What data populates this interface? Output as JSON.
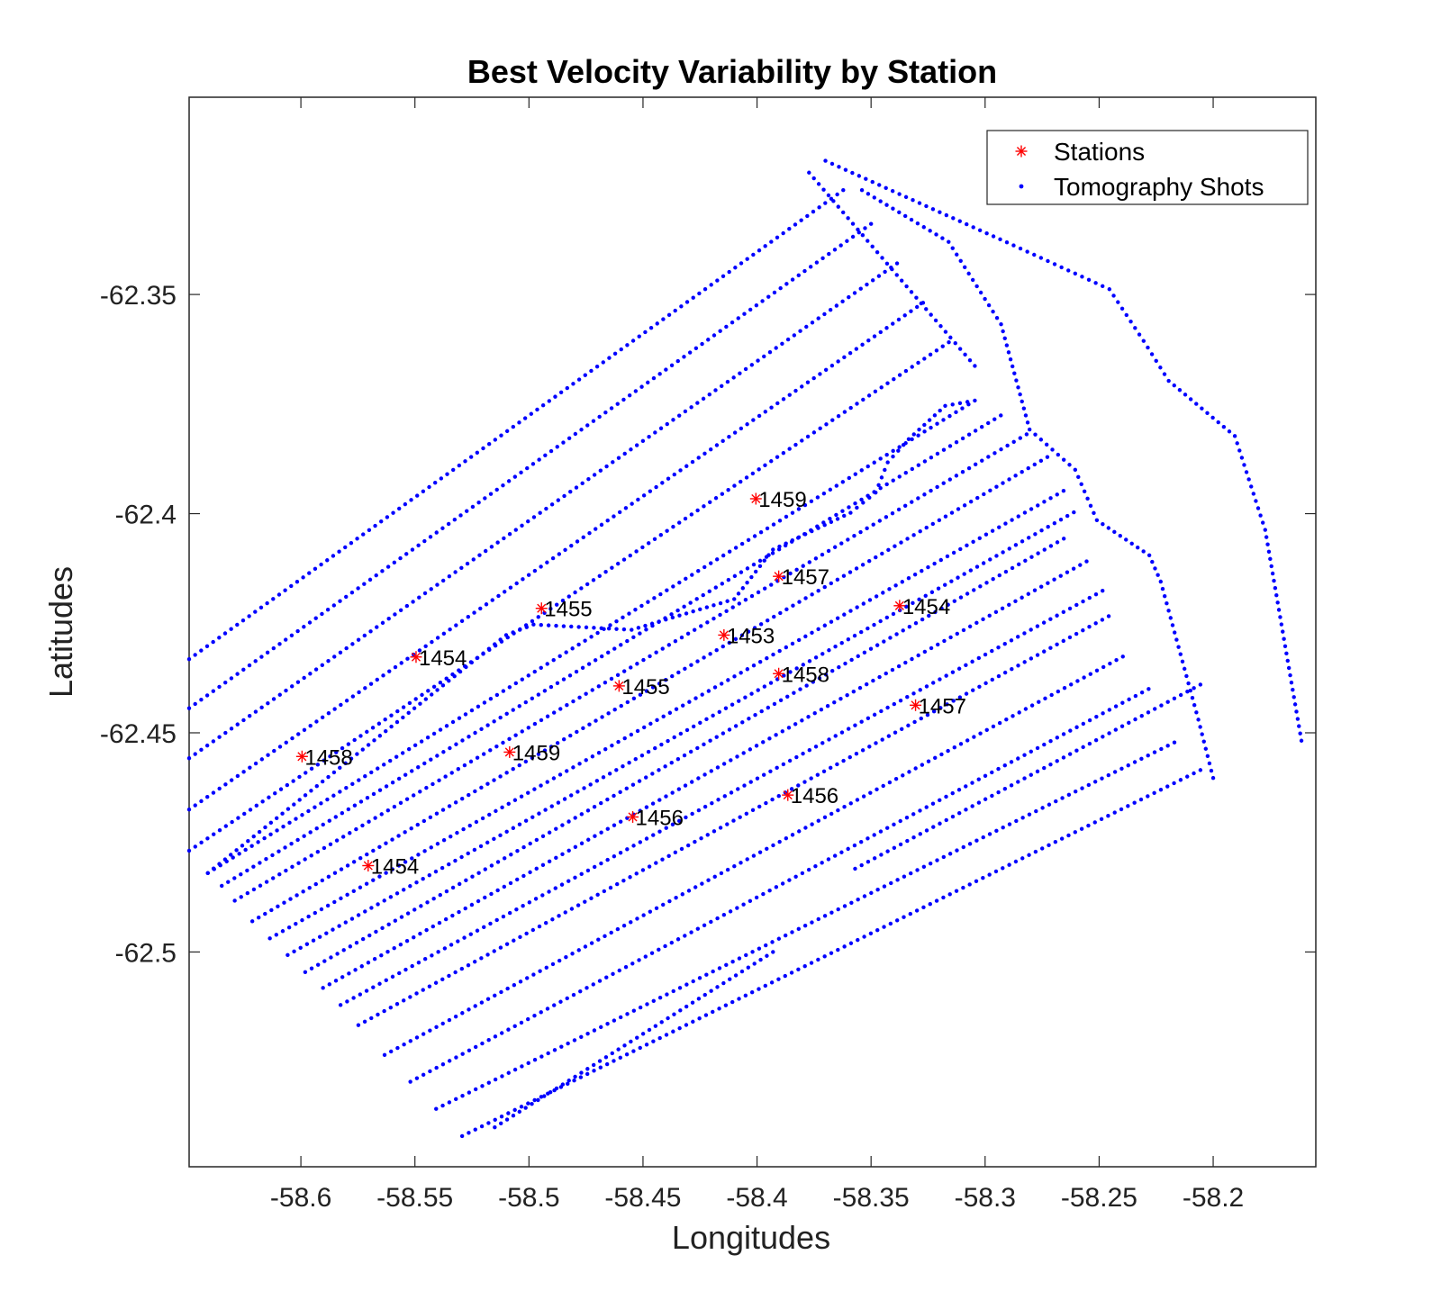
{
  "chart_data": {
    "type": "scatter",
    "title": "Best Velocity Variability by Station",
    "xlabel": "Longitudes",
    "ylabel": "Latitudes",
    "xlim": [
      -58.649,
      -58.155
    ],
    "ylim": [
      -62.549,
      -62.305
    ],
    "xticks": [
      -58.6,
      -58.55,
      -58.5,
      -58.45,
      -58.4,
      -58.35,
      -58.3,
      -58.25,
      -58.2
    ],
    "xtick_labels": [
      "-58.6",
      "-58.55",
      "-58.5",
      "-58.45",
      "-58.4",
      "-58.35",
      "-58.3",
      "-58.25",
      "-58.2"
    ],
    "yticks": [
      -62.35,
      -62.4,
      -62.45,
      -62.5
    ],
    "ytick_labels": [
      "-62.35",
      "-62.4",
      "-62.45",
      "-62.5"
    ],
    "grid": false,
    "legend": {
      "position": "top-right",
      "entries": [
        {
          "label": "Stations",
          "marker": "asterisk",
          "color": "#ff0000"
        },
        {
          "label": "Tomography Shots",
          "marker": "dot",
          "color": "#0000ff"
        }
      ]
    },
    "series": [
      {
        "name": "Stations",
        "marker": "asterisk",
        "color": "#ff0000",
        "points": [
          {
            "x": -58.4005,
            "y": -62.3966,
            "label": "1459"
          },
          {
            "x": -58.3905,
            "y": -62.4143,
            "label": "1457"
          },
          {
            "x": -58.4945,
            "y": -62.4216,
            "label": "1455"
          },
          {
            "x": -58.3375,
            "y": -62.421,
            "label": "1454"
          },
          {
            "x": -58.4145,
            "y": -62.4277,
            "label": "1453"
          },
          {
            "x": -58.5495,
            "y": -62.4327,
            "label": "1454"
          },
          {
            "x": -58.3905,
            "y": -62.4365,
            "label": "1458"
          },
          {
            "x": -58.4605,
            "y": -62.4393,
            "label": "1455"
          },
          {
            "x": -58.3305,
            "y": -62.4437,
            "label": "1457"
          },
          {
            "x": -58.5995,
            "y": -62.4554,
            "label": "1458"
          },
          {
            "x": -58.5085,
            "y": -62.4544,
            "label": "1459"
          },
          {
            "x": -58.3865,
            "y": -62.4642,
            "label": "1456"
          },
          {
            "x": -58.4545,
            "y": -62.4692,
            "label": "1456"
          },
          {
            "x": -58.5705,
            "y": -62.4803,
            "label": "1454"
          }
        ]
      },
      {
        "name": "Tomography Shots",
        "marker": "dot",
        "color": "#0000ff",
        "lines": [
          [
            [
              -58.649,
              -62.4332
            ],
            [
              -58.3622,
              -62.3262
            ]
          ],
          [
            [
              -58.649,
              -62.4444
            ],
            [
              -58.35,
              -62.3339
            ]
          ],
          [
            [
              -58.649,
              -62.4558
            ],
            [
              -58.3386,
              -62.3429
            ]
          ],
          [
            [
              -58.649,
              -62.4675
            ],
            [
              -58.3272,
              -62.3519
            ]
          ],
          [
            [
              -58.649,
              -62.4769
            ],
            [
              -58.3159,
              -62.3609
            ]
          ],
          [
            [
              -58.6408,
              -62.482
            ],
            [
              -58.3045,
              -62.3742
            ],
            [
              -58.3175,
              -62.3754
            ],
            [
              -58.3335,
              -62.383
            ],
            [
              -58.3427,
              -62.3883
            ],
            [
              -58.348,
              -62.3952
            ],
            [
              -58.359,
              -62.3998
            ],
            [
              -58.393,
              -62.4082
            ],
            [
              -58.41,
              -62.4195
            ],
            [
              -58.455,
              -62.4265
            ],
            [
              -58.498,
              -62.4253
            ],
            [
              -58.51,
              -62.4277
            ],
            [
              -58.6408,
              -62.482
            ]
          ],
          [
            [
              -58.6347,
              -62.4849
            ],
            [
              -58.2931,
              -62.3776
            ]
          ],
          [
            [
              -58.629,
              -62.4883
            ],
            [
              -58.2818,
              -62.3819
            ]
          ],
          [
            [
              -58.6213,
              -62.493
            ],
            [
              -58.2727,
              -62.3871
            ]
          ],
          [
            [
              -58.6136,
              -62.4969
            ],
            [
              -58.2656,
              -62.3948
            ]
          ],
          [
            [
              -58.6058,
              -62.5007
            ],
            [
              -58.2611,
              -62.3997
            ]
          ],
          [
            [
              -58.5981,
              -62.5046
            ],
            [
              -58.2655,
              -62.4057
            ]
          ],
          [
            [
              -58.5903,
              -62.5082
            ],
            [
              -58.2555,
              -62.4109
            ]
          ],
          [
            [
              -58.5826,
              -62.5121
            ],
            [
              -58.2485,
              -62.4176
            ]
          ],
          [
            [
              -58.5748,
              -62.5167
            ],
            [
              -58.2458,
              -62.4234
            ]
          ],
          [
            [
              -58.5633,
              -62.5235
            ],
            [
              -58.2396,
              -62.4326
            ]
          ],
          [
            [
              -58.552,
              -62.5296
            ],
            [
              -58.2283,
              -62.44
            ]
          ],
          [
            [
              -58.5407,
              -62.5358
            ],
            [
              -58.217,
              -62.4522
            ]
          ],
          [
            [
              -58.5293,
              -62.542
            ],
            [
              -58.2056,
              -62.4585
            ]
          ],
          [
            [
              -58.515,
              -62.54
            ],
            [
              -58.393,
              -62.5
            ]
          ],
          [
            [
              -58.357,
              -62.481
            ],
            [
              -58.2056,
              -62.439
            ]
          ],
          [
            [
              -58.3772,
              -62.3222
            ],
            [
              -58.3045,
              -62.3663
            ]
          ],
          [
            [
              -58.37,
              -62.3195
            ],
            [
              -58.2875,
              -62.3388
            ],
            [
              -58.2455,
              -62.3488
            ],
            [
              -58.2305,
              -62.3606
            ],
            [
              -58.2195,
              -62.3697
            ],
            [
              -58.1905,
              -62.3823
            ],
            [
              -58.1772,
              -62.4037
            ],
            [
              -58.1613,
              -62.4518
            ]
          ],
          [
            [
              -58.354,
              -62.3262
            ],
            [
              -58.316,
              -62.338
            ],
            [
              -58.293,
              -62.3568
            ],
            [
              -58.2805,
              -62.3808
            ],
            [
              -58.2605,
              -62.39
            ],
            [
              -58.251,
              -62.4015
            ],
            [
              -58.228,
              -62.4095
            ],
            [
              -58.223,
              -62.4155
            ],
            [
              -58.2065,
              -62.447
            ],
            [
              -58.2,
              -62.4603
            ]
          ]
        ]
      }
    ]
  }
}
